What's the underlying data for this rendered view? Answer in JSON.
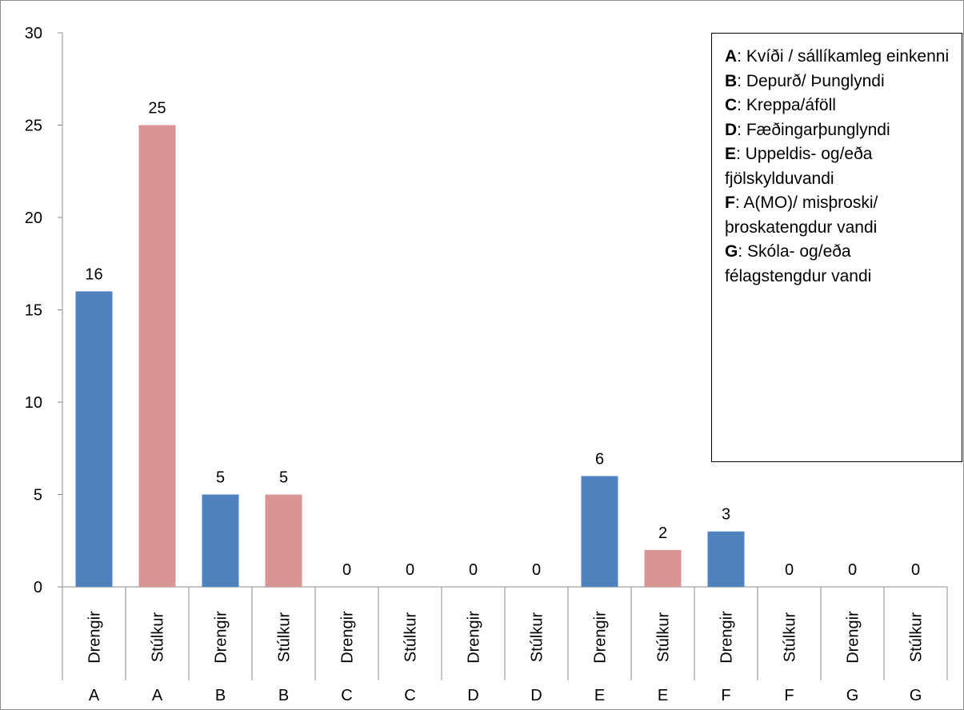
{
  "chart_data": {
    "type": "bar",
    "title": "",
    "xlabel": "",
    "ylabel": "",
    "ylim": [
      0,
      30
    ],
    "y_ticks": [
      "0",
      "5",
      "10",
      "15",
      "20",
      "25",
      "30"
    ],
    "grid": false,
    "categories": [
      {
        "group": "A",
        "label": "Drengir"
      },
      {
        "group": "A",
        "label": "Stúlkur"
      },
      {
        "group": "B",
        "label": "Drengir"
      },
      {
        "group": "B",
        "label": "Stúlkur"
      },
      {
        "group": "C",
        "label": "Drengir"
      },
      {
        "group": "C",
        "label": "Stúlkur"
      },
      {
        "group": "D",
        "label": "Drengir"
      },
      {
        "group": "D",
        "label": "Stúlkur"
      },
      {
        "group": "E",
        "label": "Drengir"
      },
      {
        "group": "E",
        "label": "Stúlkur"
      },
      {
        "group": "F",
        "label": "Drengir"
      },
      {
        "group": "F",
        "label": "Stúlkur"
      },
      {
        "group": "G",
        "label": "Drengir"
      },
      {
        "group": "G",
        "label": "Stúlkur"
      }
    ],
    "values": [
      16,
      25,
      5,
      5,
      0,
      0,
      0,
      0,
      6,
      2,
      3,
      0,
      0,
      0
    ],
    "data_labels": [
      "16",
      "25",
      "5",
      "5",
      "0",
      "0",
      "0",
      "0",
      "6",
      "2",
      "3",
      "0",
      "0",
      "0"
    ],
    "colors": {
      "Drengir": "#4f81bd",
      "Stúlkur": "#d99594"
    },
    "legend": {
      "placement": "top-right",
      "entries": [
        {
          "key": "A",
          "text": ": Kvíði / sállíkamleg einkenni"
        },
        {
          "key": "B",
          "text": ": Depurð/ Þunglyndi"
        },
        {
          "key": "C",
          "text": ": Kreppa/áföll"
        },
        {
          "key": "D",
          "text": ": Fæðingarþunglyndi"
        },
        {
          "key": "E",
          "text": ": Uppeldis- og/eða fjölskylduvandi"
        },
        {
          "key": "F",
          "text": ": A(MO)/ misþroski/ þroskatengdur vandi"
        },
        {
          "key": "G",
          "text": ": Skóla- og/eða félagstengdur vandi"
        }
      ]
    }
  }
}
